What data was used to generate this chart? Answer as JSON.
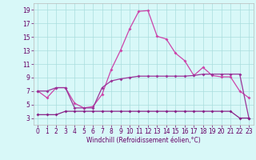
{
  "xlabel": "Windchill (Refroidissement éolien,°C)",
  "x": [
    0,
    1,
    2,
    3,
    4,
    5,
    6,
    7,
    8,
    9,
    10,
    11,
    12,
    13,
    14,
    15,
    16,
    17,
    18,
    19,
    20,
    21,
    22,
    23
  ],
  "line1": [
    7.0,
    6.0,
    7.5,
    7.5,
    5.2,
    4.5,
    4.7,
    6.5,
    10.2,
    13.0,
    16.2,
    18.8,
    18.9,
    15.1,
    14.7,
    12.6,
    11.5,
    9.3,
    10.5,
    9.3,
    9.1,
    9.1,
    7.0,
    6.0
  ],
  "line2": [
    7.0,
    7.0,
    7.5,
    7.5,
    4.5,
    4.5,
    4.5,
    7.5,
    8.5,
    8.8,
    9.0,
    9.2,
    9.2,
    9.2,
    9.2,
    9.2,
    9.2,
    9.3,
    9.5,
    9.5,
    9.5,
    9.5,
    9.5,
    3.0
  ],
  "line3": [
    3.5,
    3.5,
    3.5,
    4.0,
    4.0,
    4.0,
    4.0,
    4.0,
    4.0,
    4.0,
    4.0,
    4.0,
    4.0,
    4.0,
    4.0,
    4.0,
    4.0,
    4.0,
    4.0,
    4.0,
    4.0,
    4.0,
    3.0,
    3.0
  ],
  "line_color1": "#cc44aa",
  "line_color2": "#993399",
  "line_color3": "#882288",
  "bg_color": "#d8f8f8",
  "grid_color": "#aadddd",
  "ylim": [
    2.0,
    20.0
  ],
  "xlim": [
    -0.5,
    23.5
  ],
  "yticks": [
    3,
    5,
    7,
    9,
    11,
    13,
    15,
    17,
    19
  ],
  "xticks": [
    0,
    1,
    2,
    3,
    4,
    5,
    6,
    7,
    8,
    9,
    10,
    11,
    12,
    13,
    14,
    15,
    16,
    17,
    18,
    19,
    20,
    21,
    22,
    23
  ],
  "tick_color": "#660066",
  "label_fontsize": 5.5,
  "marker_size": 2.0,
  "line_width": 0.9
}
